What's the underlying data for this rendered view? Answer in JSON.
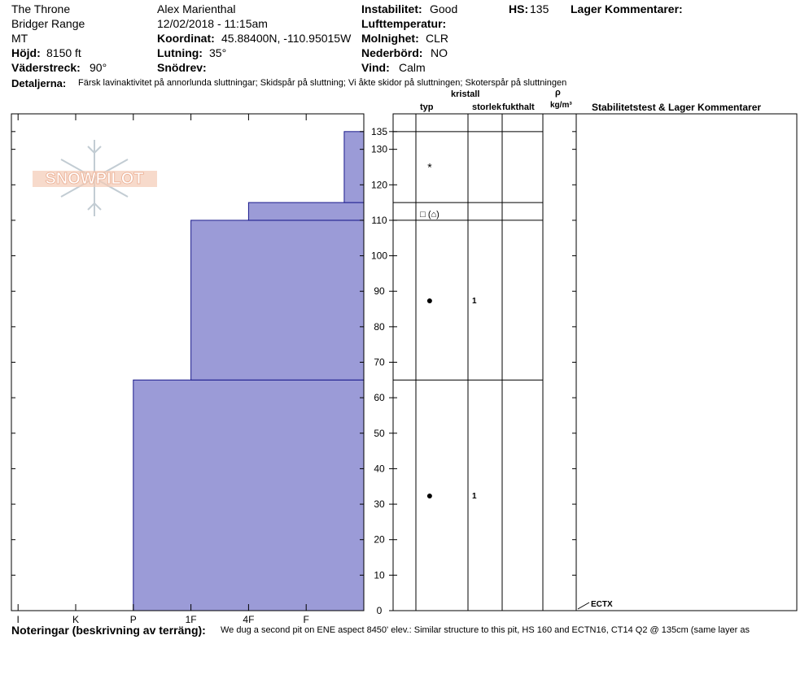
{
  "header": {
    "location": "The Throne",
    "range": "Bridger Range",
    "state": "MT",
    "elevation_label": "Höjd:",
    "elevation_value": "8150 ft",
    "aspect_label": "Väderstreck:",
    "aspect_value": "90°",
    "observer": "Alex Marienthal",
    "datetime": "12/02/2018 - 11:15am",
    "coord_label": "Koordinat:",
    "coord_value": "45.88400N, -110.95015W",
    "slope_label": "Lutning:",
    "slope_value": "35°",
    "drift_label": "Snödrev:",
    "drift_value": "",
    "stability_label": "Instabilitet:",
    "stability_value": "Good",
    "airtemp_label": "Lufttemperatur:",
    "airtemp_value": "",
    "sky_label": "Molnighet:",
    "sky_value": "CLR",
    "precip_label": "Nederbörd:",
    "precip_value": "NO",
    "wind_label": "Vind:",
    "wind_value": "Calm",
    "hs_label": "HS:",
    "hs_value": "135",
    "layer_comments_label": "Lager Kommentarer:",
    "details_label": "Detaljerna:",
    "details_value": "Färsk lavinaktivitet på annorlunda sluttningar; Skidspår på sluttning; Vi åkte skidor på sluttningen; Skoterspår på sluttningen"
  },
  "logo": {
    "text": "SNOWPILOT",
    "accent": "#e8a080"
  },
  "columns": {
    "crystal": "kristall",
    "type": "typ",
    "size": "storlek",
    "moisture": "fukthalt",
    "rho": "ρ",
    "density_unit": "kg/m³",
    "stability": "Stabilitetstest & Lager Kommentarer"
  },
  "notes": {
    "label": "Noteringar (beskrivning av terräng):",
    "value": "We dug a second pit on ENE aspect 8450' elev.: Similar structure to this pit, HS 160 and ECTN16, CT14 Q2 @ 135cm (same layer as"
  },
  "chart_data": {
    "type": "bar",
    "title": "",
    "xlabel": "",
    "ylabel": "",
    "colors": {
      "fill": "#9b9bd7",
      "stroke": "#1a1a8c"
    },
    "hardness_ticks": [
      "I",
      "K",
      "P",
      "1F",
      "4F",
      "F"
    ],
    "hardness_index": {
      "F": 1,
      "4F": 2,
      "1F": 3,
      "P": 4,
      "K": 5,
      "I": 6
    },
    "ylim": [
      0,
      140
    ],
    "yticks": [
      0,
      10,
      20,
      30,
      40,
      50,
      60,
      70,
      80,
      90,
      100,
      110,
      120,
      130,
      135
    ],
    "layers": [
      {
        "bottom": 0,
        "top": 65,
        "hardness": 4
      },
      {
        "bottom": 65,
        "top": 110,
        "hardness": 3
      },
      {
        "bottom": 110,
        "top": 115,
        "hardness": 2
      },
      {
        "bottom": 115,
        "top": 135,
        "hardness": 0.34
      }
    ],
    "layer_boundaries": [
      65,
      110,
      115,
      135
    ],
    "grain_symbols": [
      {
        "height": 125,
        "symbol": "*",
        "size": ""
      },
      {
        "height": 112,
        "symbol": "□ (⌂)",
        "size": ""
      },
      {
        "height": 87.5,
        "symbol": "●",
        "size": "1"
      },
      {
        "height": 32.5,
        "symbol": "●",
        "size": "1"
      }
    ],
    "stability_tests": [
      {
        "height": 0,
        "label": "ECTX"
      }
    ]
  }
}
